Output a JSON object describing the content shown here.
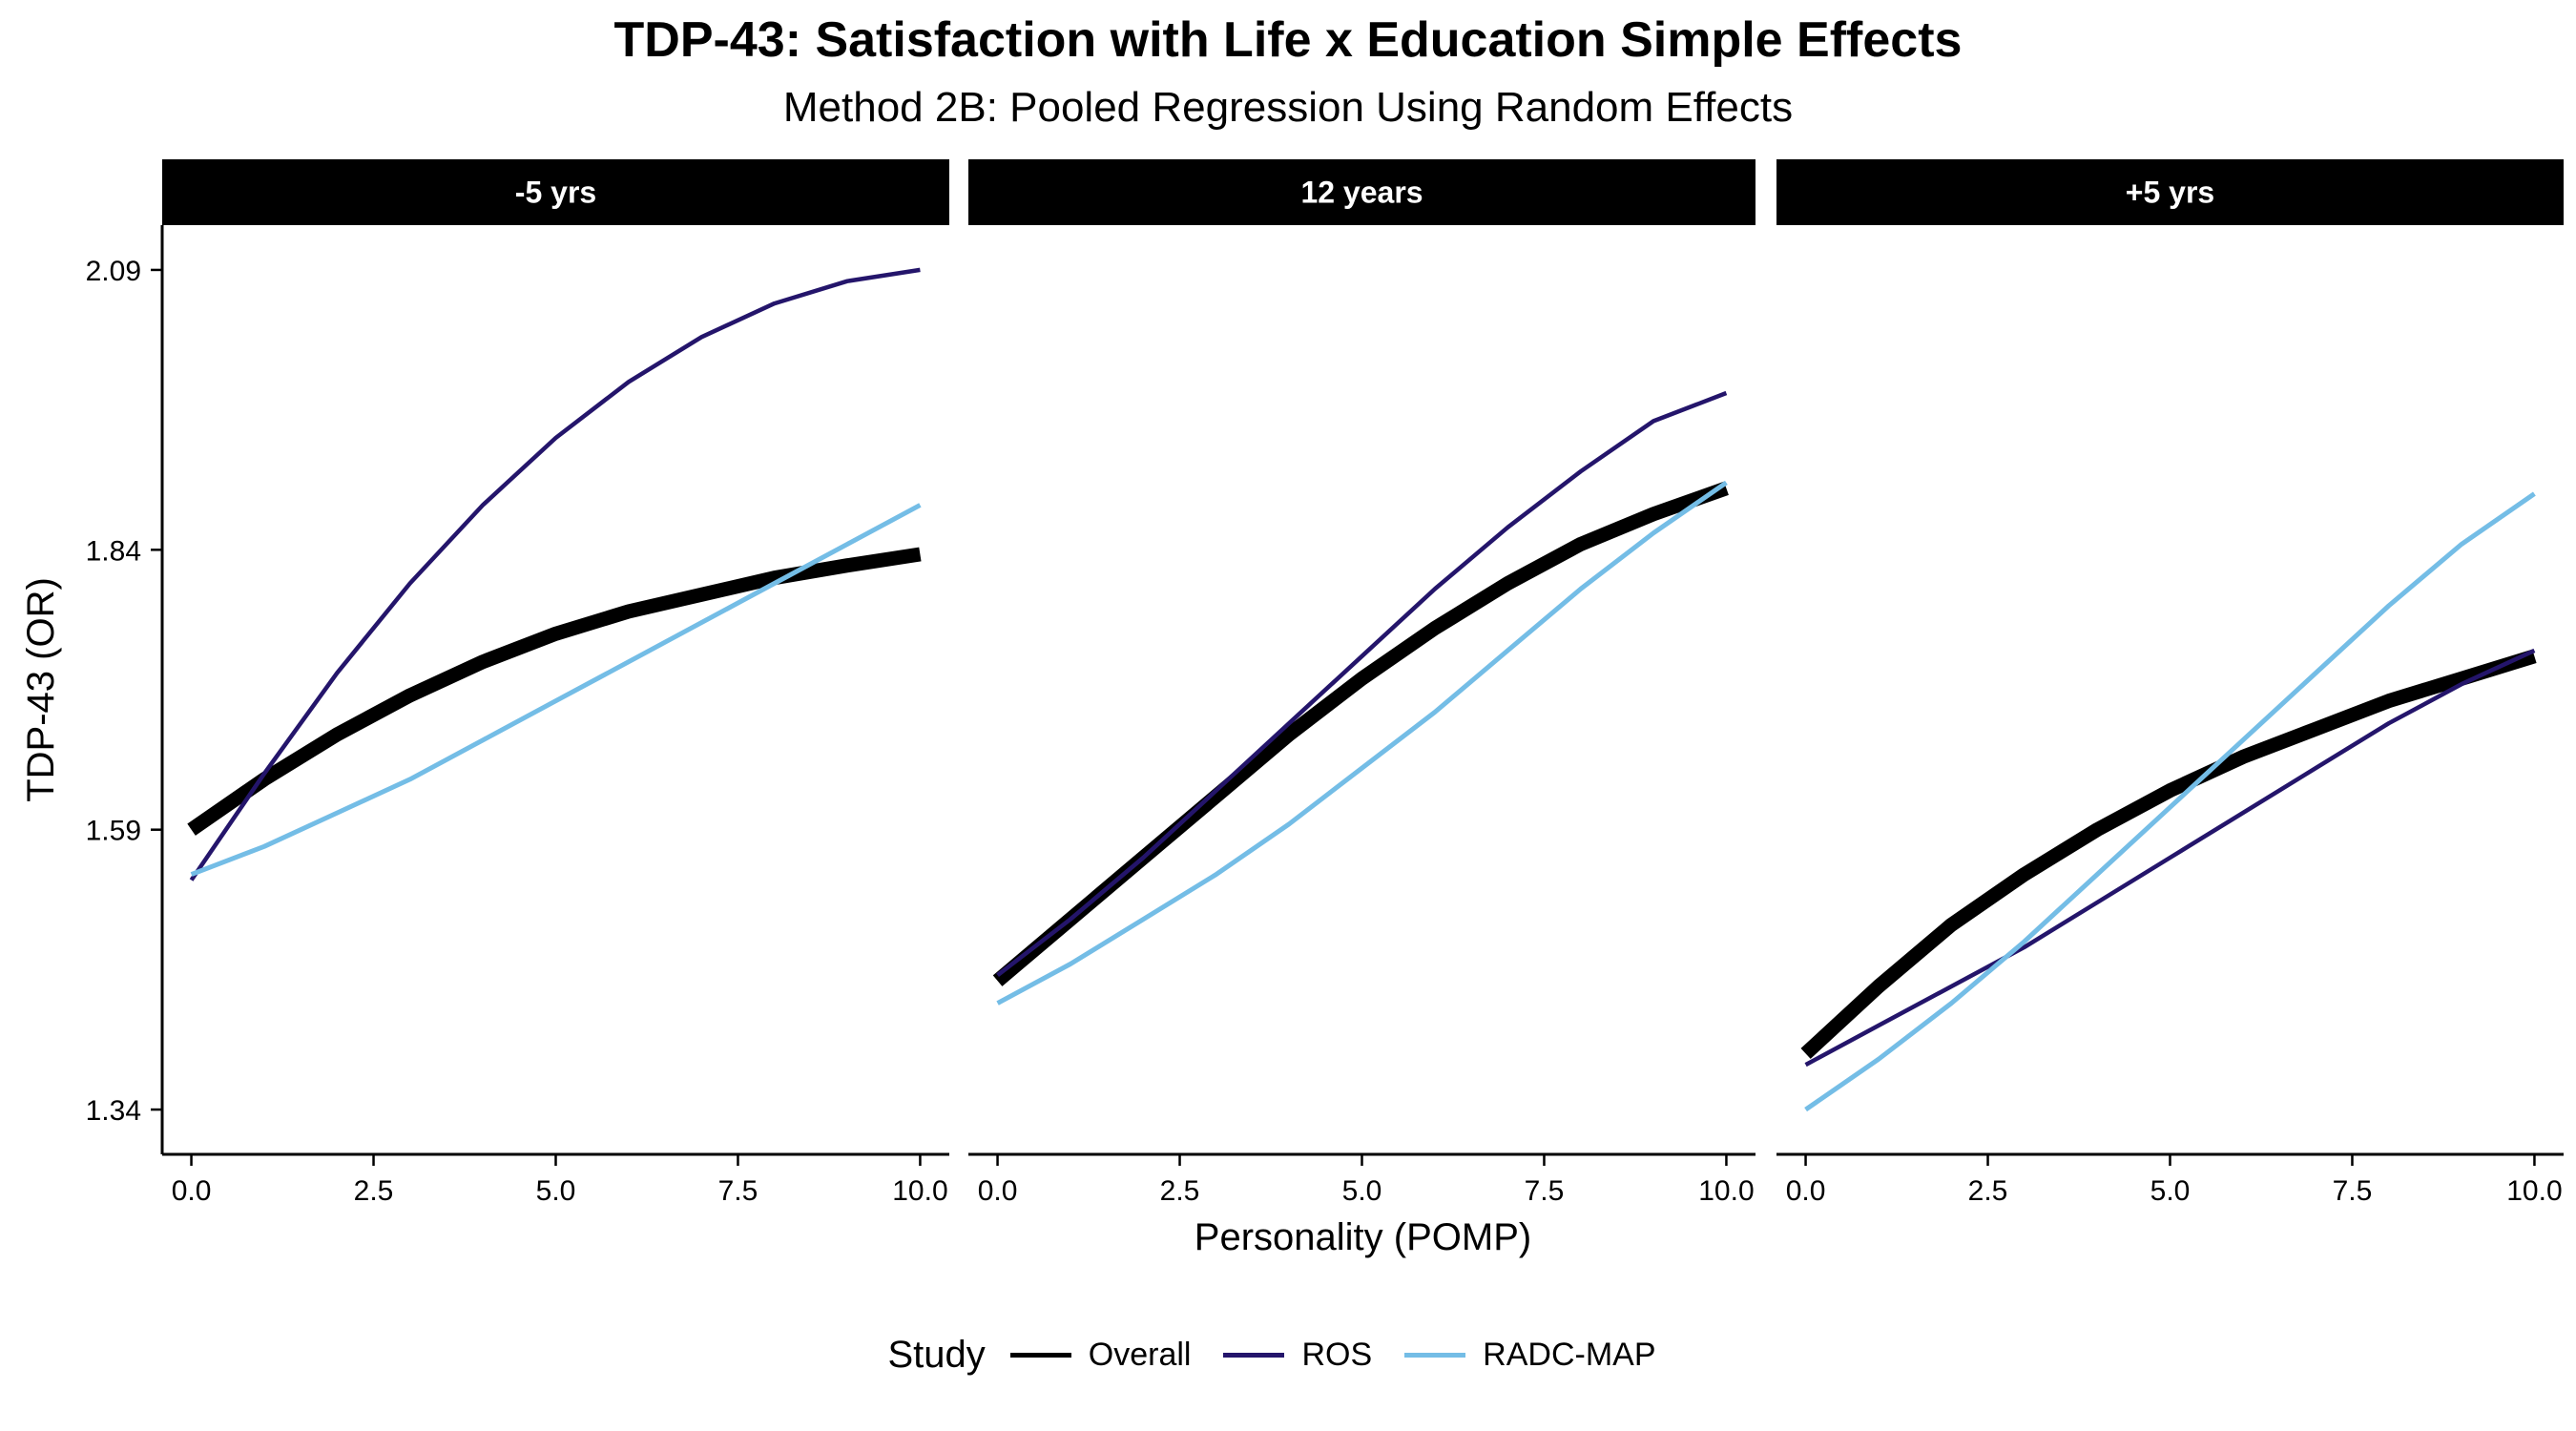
{
  "chart_data": {
    "type": "line",
    "title": "TDP-43: Satisfaction with Life x Education Simple Effects",
    "subtitle": "Method 2B: Pooled Regression Using Random Effects",
    "xlabel": "Personality (POMP)",
    "ylabel": "TDP-43 (OR)",
    "xlim": [
      -0.4,
      10.4
    ],
    "ylim": [
      1.3,
      2.13
    ],
    "x_ticks": [
      "0.0",
      "2.5",
      "5.0",
      "7.5",
      "10.0"
    ],
    "x_tick_values": [
      0,
      2.5,
      5,
      7.5,
      10
    ],
    "y_ticks": [
      "1.34",
      "1.59",
      "1.84",
      "2.09"
    ],
    "y_tick_values": [
      1.34,
      1.59,
      1.84,
      2.09
    ],
    "grid": false,
    "legend_position": "bottom",
    "legend_title": "Study",
    "legend": [
      {
        "name": "Overall",
        "color": "#000000"
      },
      {
        "name": "ROS",
        "color": "#24156b"
      },
      {
        "name": "RADC-MAP",
        "color": "#74bde6"
      }
    ],
    "x": [
      0,
      1,
      2,
      3,
      4,
      5,
      6,
      7,
      8,
      9,
      10
    ],
    "facets": [
      {
        "label": "-5 yrs",
        "series": [
          {
            "name": "Overall",
            "values": [
              1.59,
              1.635,
              1.675,
              1.71,
              1.74,
              1.765,
              1.785,
              1.8,
              1.815,
              1.826,
              1.836
            ]
          },
          {
            "name": "ROS",
            "values": [
              1.545,
              1.64,
              1.73,
              1.81,
              1.88,
              1.94,
              1.99,
              2.03,
              2.06,
              2.08,
              2.09
            ]
          },
          {
            "name": "RADC-MAP",
            "values": [
              1.55,
              1.575,
              1.605,
              1.635,
              1.67,
              1.705,
              1.74,
              1.775,
              1.81,
              1.845,
              1.88
            ]
          }
        ]
      },
      {
        "label": "12 years",
        "series": [
          {
            "name": "Overall",
            "values": [
              1.455,
              1.51,
              1.565,
              1.62,
              1.675,
              1.725,
              1.77,
              1.81,
              1.845,
              1.872,
              1.895
            ]
          },
          {
            "name": "ROS",
            "values": [
              1.46,
              1.51,
              1.565,
              1.625,
              1.685,
              1.745,
              1.805,
              1.86,
              1.91,
              1.955,
              1.98
            ]
          },
          {
            "name": "RADC-MAP",
            "values": [
              1.435,
              1.47,
              1.51,
              1.55,
              1.595,
              1.645,
              1.695,
              1.75,
              1.805,
              1.855,
              1.9
            ]
          }
        ]
      },
      {
        "label": "+5 yrs",
        "series": [
          {
            "name": "Overall",
            "values": [
              1.39,
              1.45,
              1.505,
              1.55,
              1.59,
              1.625,
              1.655,
              1.68,
              1.705,
              1.725,
              1.745
            ]
          },
          {
            "name": "ROS",
            "values": [
              1.38,
              1.415,
              1.45,
              1.485,
              1.525,
              1.565,
              1.605,
              1.645,
              1.685,
              1.72,
              1.75
            ]
          },
          {
            "name": "RADC-MAP",
            "values": [
              1.34,
              1.385,
              1.435,
              1.49,
              1.55,
              1.61,
              1.67,
              1.73,
              1.79,
              1.845,
              1.89
            ]
          }
        ]
      }
    ]
  }
}
